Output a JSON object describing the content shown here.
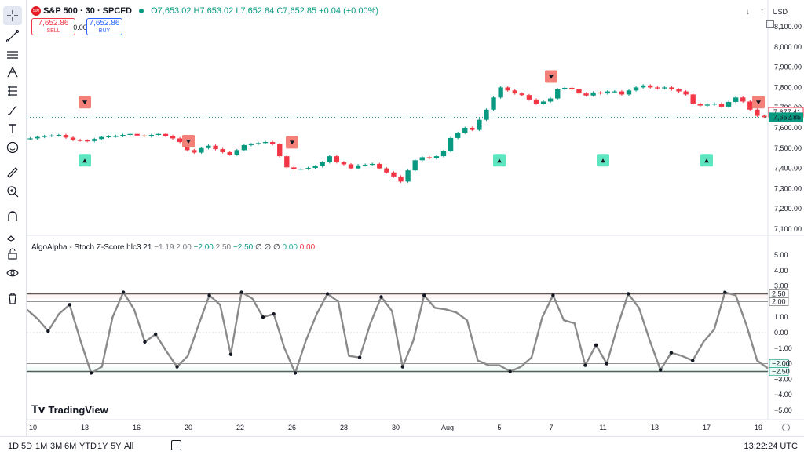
{
  "header": {
    "symbol": "S&P 500 · 30 · SPCFD",
    "logo_text": "500",
    "open": "O7,653.02",
    "high": "H7,653.02",
    "low": "L7,652.84",
    "close": "C7,652.85",
    "change": "+0.04 (+0.00%)",
    "currency": "USD",
    "sell_price": "7,652.86",
    "sell_label": "SELL",
    "spread": "0.00",
    "buy_price": "7,652.86",
    "buy_label": "BUY"
  },
  "indicator": {
    "name": "AlgoAlpha - Stoch Z-Score",
    "params": "hlc3 21",
    "v1": "−1.19",
    "v2": "2.00",
    "v3": "−2.00",
    "v4": "2.50",
    "v5": "−2.50",
    "v6": "∅ ∅ ∅",
    "v7": "0.00",
    "v8": "0.00"
  },
  "price_axis": [
    "8,100.00",
    "8,000.00",
    "7,900.00",
    "7,800.00",
    "7,700.00",
    "7,600.00",
    "7,500.00",
    "7,400.00",
    "7,300.00",
    "7,200.00",
    "7,100.00"
  ],
  "price_tags": {
    "prev": "7,677.41",
    "last": "7,652.85"
  },
  "osc_axis": [
    "5.00",
    "4.00",
    "3.00",
    "2.00",
    "1.00",
    "0.00",
    "−1.00",
    "−2.00",
    "−3.00",
    "−4.00",
    "−5.00"
  ],
  "osc_tags": {
    "upper_outer": "2.50",
    "upper_inner": "2.00",
    "value": "−1.95",
    "lower_inner": "−2.00",
    "lower_outer": "−2.50"
  },
  "time_axis": [
    "10",
    "13",
    "16",
    "20",
    "22",
    "26",
    "28",
    "30",
    "Aug",
    "5",
    "7",
    "11",
    "13",
    "17",
    "19"
  ],
  "timeframes": [
    "1D",
    "5D",
    "1M",
    "3M",
    "6M",
    "YTD",
    "1Y",
    "5Y",
    "All"
  ],
  "clock": "13:22:24 UTC",
  "watermark": "TradingView",
  "colors": {
    "up": "#089981",
    "down": "#f23645",
    "signal_up": "#5ee6c0",
    "signal_down": "#f4807a"
  },
  "chart_data": {
    "type": "candlestick",
    "price_closes": [
      7548,
      7555,
      7560,
      7562,
      7565,
      7552,
      7540,
      7538,
      7535,
      7545,
      7555,
      7558,
      7560,
      7565,
      7570,
      7562,
      7558,
      7565,
      7570,
      7560,
      7548,
      7530,
      7490,
      7478,
      7500,
      7512,
      7495,
      7480,
      7468,
      7490,
      7515,
      7520,
      7525,
      7530,
      7520,
      7460,
      7405,
      7395,
      7398,
      7402,
      7410,
      7430,
      7460,
      7430,
      7420,
      7400,
      7415,
      7418,
      7422,
      7400,
      7380,
      7360,
      7335,
      7390,
      7440,
      7455,
      7450,
      7460,
      7485,
      7550,
      7575,
      7600,
      7590,
      7640,
      7690,
      7750,
      7800,
      7785,
      7770,
      7762,
      7740,
      7720,
      7730,
      7745,
      7790,
      7798,
      7790,
      7770,
      7760,
      7775,
      7770,
      7780,
      7780,
      7765,
      7785,
      7800,
      7810,
      7800,
      7795,
      7800,
      7790,
      7780,
      7765,
      7720,
      7710,
      7715,
      7720,
      7705,
      7728,
      7750,
      7730,
      7690,
      7660,
      7653
    ],
    "osc_series": [
      1.5,
      0.9,
      0.1,
      1.2,
      1.8,
      -0.5,
      -2.6,
      -2.2,
      1.0,
      2.6,
      1.5,
      -0.6,
      -0.1,
      -1.2,
      -2.2,
      -1.5,
      0.5,
      2.4,
      1.8,
      -1.4,
      2.6,
      2.2,
      1.0,
      1.2,
      -1.0,
      -2.6,
      -0.5,
      1.2,
      2.5,
      2.0,
      -1.5,
      -1.6,
      0.6,
      2.3,
      1.4,
      -2.2,
      -0.5,
      2.4,
      1.6,
      1.5,
      1.3,
      0.8,
      -1.8,
      -2.1,
      -2.1,
      -2.5,
      -2.2,
      -1.6,
      1.0,
      2.4,
      0.8,
      0.6,
      -2.1,
      -0.8,
      -2.0,
      0.4,
      2.5,
      1.6,
      -0.5,
      -2.4,
      -1.3,
      -1.5,
      -1.8,
      -0.6,
      0.2,
      2.6,
      2.4,
      0.5,
      -1.8,
      -2.3
    ],
    "sell_signal_days": [
      "15",
      "20",
      "26",
      "7",
      "13",
      "19"
    ],
    "buy_signal_days": [
      "13",
      "5",
      "11",
      "17"
    ],
    "levels": [
      2.5,
      2.0,
      0.0,
      -2.0,
      -2.5
    ]
  }
}
